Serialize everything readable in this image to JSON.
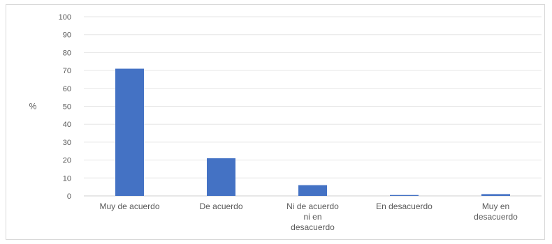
{
  "chart_data": {
    "type": "bar",
    "title": "",
    "xlabel": "",
    "ylabel": "%",
    "ylim": [
      0,
      100
    ],
    "y_ticks": [
      0,
      10,
      20,
      30,
      40,
      50,
      60,
      70,
      80,
      90,
      100
    ],
    "grid": true,
    "categories": [
      "Muy de acuerdo",
      "De acuerdo",
      "Ni de acuerdo ni en desacuerdo",
      "En desacuerdo",
      "Muy en desacuerdo"
    ],
    "category_lines": [
      [
        "Muy de acuerdo"
      ],
      [
        "De acuerdo"
      ],
      [
        "Ni de acuerdo",
        "ni en",
        "desacuerdo"
      ],
      [
        "En desacuerdo"
      ],
      [
        "Muy en",
        "desacuerdo"
      ]
    ],
    "values": [
      71,
      21,
      6,
      0.5,
      1
    ],
    "bar_color": "#4472c4"
  }
}
